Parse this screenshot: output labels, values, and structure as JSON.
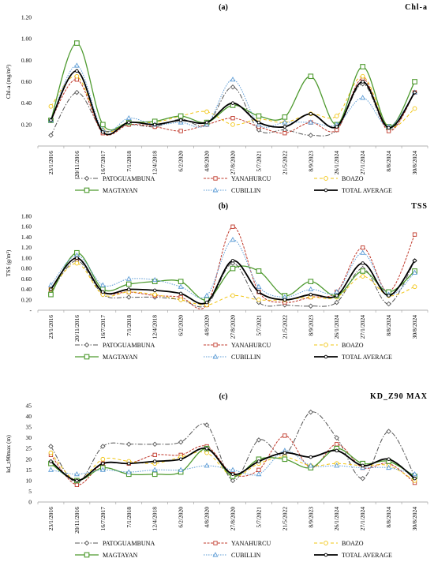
{
  "colors": {
    "PATOGUAMBUNA": "#555555",
    "YANAHURCU": "#c0392b",
    "BOAZO": "#f1c40f",
    "MAGTAYAN": "#4e9a2f",
    "CUBILLIN": "#5b9bd5",
    "TOTAL AVERAGE": "#000000"
  },
  "chart_data": [
    {
      "type": "line",
      "panel_label": "(a)",
      "title": "Chl-a",
      "ylabel": "Chl-a (mg/m³)",
      "ylim": [
        0,
        1.2
      ],
      "yticks": [
        "0.20",
        "0.40",
        "0.60",
        "0.80",
        "1.00",
        "1.20"
      ],
      "y_tick_values": [
        0.2,
        0.4,
        0.6,
        0.8,
        1.0,
        1.2
      ],
      "categories": [
        "23/1/2016",
        "20/11/2016",
        "16/7/2017",
        "7/1/2018",
        "12/4/2018",
        "6/2/2020",
        "4/8/2020",
        "27/8/2020",
        "5/7/2021",
        "21/5/2022",
        "8/9/2023",
        "26/1/2024",
        "27/1/2024",
        "8/8/2024",
        "30/8/2024"
      ],
      "series": [
        {
          "name": "PATOGUAMBUNA",
          "values": [
            0.1,
            0.5,
            0.15,
            0.2,
            0.18,
            0.25,
            0.2,
            0.55,
            0.15,
            0.15,
            0.1,
            0.15,
            0.58,
            0.15,
            0.5
          ]
        },
        {
          "name": "YANAHURCU",
          "values": [
            0.24,
            0.62,
            0.12,
            0.2,
            0.18,
            0.14,
            0.2,
            0.26,
            0.18,
            0.12,
            0.22,
            0.15,
            0.63,
            0.14,
            0.5
          ]
        },
        {
          "name": "BOAZO",
          "values": [
            0.37,
            0.65,
            0.15,
            0.22,
            0.22,
            0.28,
            0.32,
            0.2,
            0.25,
            0.22,
            0.3,
            0.28,
            0.65,
            0.18,
            0.35
          ]
        },
        {
          "name": "MAGTAYAN",
          "values": [
            0.24,
            0.96,
            0.2,
            0.22,
            0.23,
            0.28,
            0.22,
            0.38,
            0.28,
            0.27,
            0.65,
            0.2,
            0.74,
            0.18,
            0.6
          ]
        },
        {
          "name": "CUBILLIN",
          "values": [
            0.24,
            0.75,
            0.15,
            0.26,
            0.2,
            0.22,
            0.2,
            0.62,
            0.2,
            0.22,
            0.22,
            0.2,
            0.45,
            0.18,
            0.5
          ]
        },
        {
          "name": "TOTAL AVERAGE",
          "values": [
            0.24,
            0.7,
            0.13,
            0.22,
            0.2,
            0.24,
            0.22,
            0.4,
            0.22,
            0.18,
            0.3,
            0.18,
            0.6,
            0.17,
            0.5
          ]
        }
      ]
    },
    {
      "type": "line",
      "panel_label": "(b)",
      "title": "TSS",
      "ylabel": "TSS (g/m³)",
      "ylim": [
        0,
        1.8
      ],
      "yticks": [
        "-",
        "0.20",
        "0.40",
        "0.60",
        "0.80",
        "1.00",
        "1.20",
        "1.40",
        "1.60",
        "1.80"
      ],
      "y_tick_values": [
        0,
        0.2,
        0.4,
        0.6,
        0.8,
        1.0,
        1.2,
        1.4,
        1.6,
        1.8
      ],
      "categories": [
        "23/1/2016",
        "20/11/2016",
        "16/7/2017",
        "7/1/2018",
        "12/4/2018",
        "6/2/2020",
        "4/8/2020",
        "27/8/2020",
        "5/7/2021",
        "21/5/2022",
        "8/9/2023",
        "26/1/2024",
        "27/1/2024",
        "8/8/2024",
        "30/8/2024"
      ],
      "series": [
        {
          "name": "PATOGUAMBUNA",
          "values": [
            0.35,
            0.95,
            0.3,
            0.25,
            0.25,
            0.2,
            0.1,
            0.9,
            0.15,
            0.1,
            0.08,
            0.15,
            0.8,
            0.12,
            0.95
          ]
        },
        {
          "name": "YANAHURCU",
          "values": [
            0.4,
            1.0,
            0.35,
            0.35,
            0.28,
            0.25,
            0.1,
            1.6,
            0.35,
            0.15,
            0.25,
            0.35,
            1.2,
            0.35,
            1.45
          ]
        },
        {
          "name": "BOAZO",
          "values": [
            0.4,
            0.9,
            0.3,
            0.35,
            0.3,
            0.2,
            0.1,
            0.28,
            0.2,
            0.2,
            0.25,
            0.25,
            0.65,
            0.28,
            0.45
          ]
        },
        {
          "name": "MAGTAYAN",
          "values": [
            0.3,
            1.1,
            0.4,
            0.5,
            0.55,
            0.55,
            0.2,
            0.8,
            0.75,
            0.28,
            0.55,
            0.28,
            0.75,
            0.35,
            0.75
          ]
        },
        {
          "name": "CUBILLIN",
          "values": [
            0.48,
            1.05,
            0.48,
            0.6,
            0.58,
            0.45,
            0.28,
            1.35,
            0.45,
            0.25,
            0.4,
            0.35,
            1.1,
            0.3,
            0.72
          ]
        },
        {
          "name": "TOTAL AVERAGE",
          "values": [
            0.4,
            1.0,
            0.35,
            0.4,
            0.38,
            0.32,
            0.15,
            0.95,
            0.35,
            0.2,
            0.3,
            0.28,
            0.9,
            0.28,
            0.95
          ]
        }
      ]
    },
    {
      "type": "line",
      "panel_label": "(c)",
      "title": "KD_Z90 MAX",
      "ylabel": "kd_z90max (m)",
      "ylim": [
        0,
        45
      ],
      "yticks": [
        "0",
        "5",
        "10",
        "15",
        "20",
        "25",
        "30",
        "35",
        "40",
        "45"
      ],
      "y_tick_values": [
        0,
        5,
        10,
        15,
        20,
        25,
        30,
        35,
        40,
        45
      ],
      "categories": [
        "23/1/2016",
        "20/11/2016",
        "16/7/2017",
        "7/1/2018",
        "12/4/2018",
        "6/2/2020",
        "4/8/2020",
        "27/8/2020",
        "5/7/2021",
        "21/5/2022",
        "8/9/2023",
        "26/1/2024",
        "27/1/2024",
        "8/8/2024",
        "30/8/2024"
      ],
      "series": [
        {
          "name": "PATOGUAMBUNA",
          "values": [
            26,
            9,
            26,
            27,
            27,
            28,
            36,
            10,
            29,
            22,
            42,
            30,
            11,
            33,
            12
          ]
        },
        {
          "name": "YANAHURCU",
          "values": [
            22,
            8,
            18,
            18,
            22,
            22,
            26,
            13,
            15,
            31,
            16,
            27,
            16,
            18,
            9
          ]
        },
        {
          "name": "BOAZO",
          "values": [
            23,
            10,
            20,
            19,
            18,
            21,
            23,
            12,
            18,
            21,
            17,
            18,
            17,
            17,
            10
          ]
        },
        {
          "name": "MAGTAYAN",
          "values": [
            18,
            10,
            16,
            13,
            13,
            14,
            25,
            12,
            20,
            20,
            16,
            25,
            18,
            19,
            12
          ]
        },
        {
          "name": "CUBILLIN",
          "values": [
            15,
            13,
            15,
            14,
            15,
            15,
            17,
            15,
            13,
            24,
            17,
            17,
            16,
            16,
            13
          ]
        },
        {
          "name": "TOTAL AVERAGE",
          "values": [
            19,
            10,
            18,
            18,
            19,
            20,
            25,
            13,
            19,
            23,
            21,
            24,
            17,
            20,
            11
          ]
        }
      ]
    }
  ]
}
